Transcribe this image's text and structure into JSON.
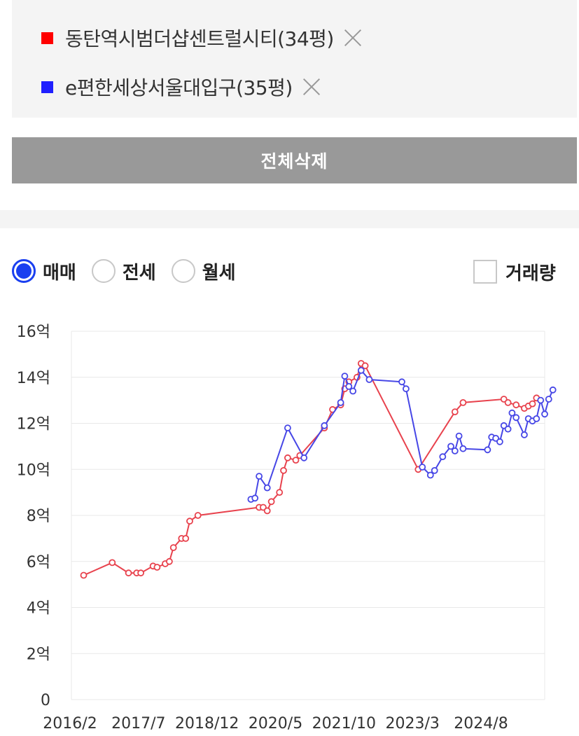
{
  "compare_list": {
    "items": [
      {
        "name": "동탄역시범더샵센트럴시티(34평)",
        "color": "#ff0000"
      },
      {
        "name": "e편한세상서울대입구(35평)",
        "color": "#2020ff"
      }
    ],
    "delete_all_label": "전체삭제"
  },
  "filters": {
    "trade_types": [
      {
        "label": "매매",
        "checked": true
      },
      {
        "label": "전세",
        "checked": false
      },
      {
        "label": "월세",
        "checked": false
      }
    ],
    "volume_label": "거래량",
    "volume_checked": false
  },
  "chart_data": {
    "type": "line",
    "y_ticks": [
      "0",
      "2억",
      "4억",
      "6억",
      "8억",
      "10억",
      "12억",
      "14억",
      "16억"
    ],
    "ylim": [
      0,
      16
    ],
    "x_ticks": [
      "2016/2",
      "2017/7",
      "2018/12",
      "2020/5",
      "2021/10",
      "2023/3",
      "2024/8"
    ],
    "xlim": [
      "2015-11",
      "2025-07"
    ],
    "grid": true,
    "series": [
      {
        "name": "동탄역시범더샵센트럴시티(34평)",
        "color": "#e8424d",
        "points": [
          [
            "2016-02",
            5.4
          ],
          [
            "2016-09",
            5.95
          ],
          [
            "2017-01",
            5.5
          ],
          [
            "2017-03",
            5.5
          ],
          [
            "2017-04",
            5.5
          ],
          [
            "2017-07",
            5.8
          ],
          [
            "2017-08",
            5.75
          ],
          [
            "2017-10",
            5.9
          ],
          [
            "2017-11",
            6.0
          ],
          [
            "2017-12",
            6.6
          ],
          [
            "2018-02",
            7.0
          ],
          [
            "2018-03",
            7.0
          ],
          [
            "2018-04",
            7.75
          ],
          [
            "2018-06",
            8.0
          ],
          [
            "2019-09",
            8.35
          ],
          [
            "2019-10",
            8.35
          ],
          [
            "2019-11",
            8.2
          ],
          [
            "2019-12",
            8.6
          ],
          [
            "2020-02",
            9.0
          ],
          [
            "2020-03",
            9.95
          ],
          [
            "2020-04",
            10.5
          ],
          [
            "2020-06",
            10.4
          ],
          [
            "2020-07",
            10.6
          ],
          [
            "2021-01",
            11.8
          ],
          [
            "2021-03",
            12.6
          ],
          [
            "2021-05",
            12.8
          ],
          [
            "2021-06",
            13.5
          ],
          [
            "2021-07",
            13.8
          ],
          [
            "2021-09",
            14.0
          ],
          [
            "2021-10",
            14.6
          ],
          [
            "2021-11",
            14.5
          ],
          [
            "2022-12",
            10.0
          ],
          [
            "2023-09",
            12.5
          ],
          [
            "2023-11",
            12.9
          ],
          [
            "2024-09",
            13.05
          ],
          [
            "2024-10",
            12.9
          ],
          [
            "2024-12",
            12.8
          ],
          [
            "2025-02",
            12.65
          ],
          [
            "2025-03",
            12.75
          ],
          [
            "2025-04",
            12.85
          ],
          [
            "2025-05",
            13.1
          ]
        ]
      },
      {
        "name": "e편한세상서울대입구(35평)",
        "color": "#4646e6",
        "points": [
          [
            "2019-07",
            8.7
          ],
          [
            "2019-08",
            8.75
          ],
          [
            "2019-09",
            9.7
          ],
          [
            "2019-11",
            9.2
          ],
          [
            "2020-04",
            11.8
          ],
          [
            "2020-08",
            10.5
          ],
          [
            "2021-01",
            11.9
          ],
          [
            "2021-05",
            12.9
          ],
          [
            "2021-06",
            14.05
          ],
          [
            "2021-07",
            13.6
          ],
          [
            "2021-08",
            13.4
          ],
          [
            "2021-10",
            14.3
          ],
          [
            "2021-12",
            13.9
          ],
          [
            "2022-08",
            13.8
          ],
          [
            "2022-09",
            13.5
          ],
          [
            "2023-01",
            10.1
          ],
          [
            "2023-03",
            9.75
          ],
          [
            "2023-04",
            9.95
          ],
          [
            "2023-06",
            10.55
          ],
          [
            "2023-08",
            11.0
          ],
          [
            "2023-09",
            10.8
          ],
          [
            "2023-10",
            11.45
          ],
          [
            "2023-11",
            10.9
          ],
          [
            "2024-05",
            10.85
          ],
          [
            "2024-06",
            11.4
          ],
          [
            "2024-07",
            11.35
          ],
          [
            "2024-08",
            11.2
          ],
          [
            "2024-09",
            11.9
          ],
          [
            "2024-10",
            11.75
          ],
          [
            "2024-11",
            12.45
          ],
          [
            "2024-12",
            12.25
          ],
          [
            "2025-02",
            11.5
          ],
          [
            "2025-03",
            12.2
          ],
          [
            "2025-04",
            12.1
          ],
          [
            "2025-05",
            12.2
          ],
          [
            "2025-06",
            13.0
          ],
          [
            "2025-07",
            12.4
          ],
          [
            "2025-08",
            13.05
          ],
          [
            "2025-09",
            13.45
          ]
        ]
      }
    ]
  }
}
